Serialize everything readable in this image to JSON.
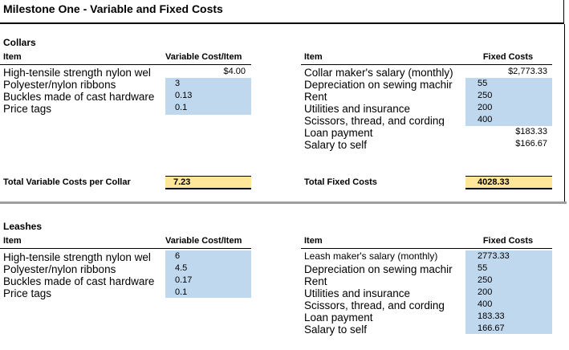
{
  "title": "Milestone One - Variable and Fixed Costs",
  "collars": {
    "section_label": "Collars",
    "variable": {
      "item_header": "Item",
      "cost_header": "Variable Cost/Item",
      "rows": [
        {
          "item": "High-tensile strength nylon wel",
          "value": "$4.00"
        },
        {
          "item": "Polyester/nylon ribbons",
          "value": "3"
        },
        {
          "item": "Buckles made of cast hardware",
          "value": "0.13"
        },
        {
          "item": "Price tags",
          "value": "0.1"
        }
      ],
      "total_label": "Total Variable Costs per Collar",
      "total_value": "7.23"
    },
    "fixed": {
      "item_header": "Item",
      "cost_header": "Fixed Costs",
      "rows": [
        {
          "item": "Collar maker's salary (monthly)",
          "value": "$2,773.33"
        },
        {
          "item": "Depreciation on sewing machir",
          "value": "55"
        },
        {
          "item": "Rent",
          "value": "250"
        },
        {
          "item": "Utilities and insurance",
          "value": "200"
        },
        {
          "item": "Scissors, thread, and cording",
          "value": "400"
        },
        {
          "item": "Loan payment",
          "value": "$183.33"
        },
        {
          "item": "Salary to self",
          "value": "$166.67"
        }
      ],
      "total_label": "Total Fixed Costs",
      "total_value": "4028.33"
    }
  },
  "leashes": {
    "section_label": "Leashes",
    "variable": {
      "item_header": "Item",
      "cost_header": "Variable Cost/Item",
      "rows": [
        {
          "item": "High-tensile strength nylon wel",
          "value": "6"
        },
        {
          "item": "Polyester/nylon ribbons",
          "value": "4.5"
        },
        {
          "item": "Buckles made of cast hardware",
          "value": "0.17"
        },
        {
          "item": "Price tags",
          "value": "0.1"
        }
      ]
    },
    "fixed": {
      "item_header": "Item",
      "cost_header": "Fixed Costs",
      "rows": [
        {
          "item": "Leash maker's salary (monthly)",
          "value": "2773.33"
        },
        {
          "item": "Depreciation on sewing machir",
          "value": "55"
        },
        {
          "item": "Rent",
          "value": "250"
        },
        {
          "item": "Utilities and insurance",
          "value": "200"
        },
        {
          "item": "Scissors, thread, and cording",
          "value": "400"
        },
        {
          "item": "Loan payment",
          "value": "183.33"
        },
        {
          "item": "Salary to self",
          "value": "166.67"
        }
      ]
    }
  }
}
